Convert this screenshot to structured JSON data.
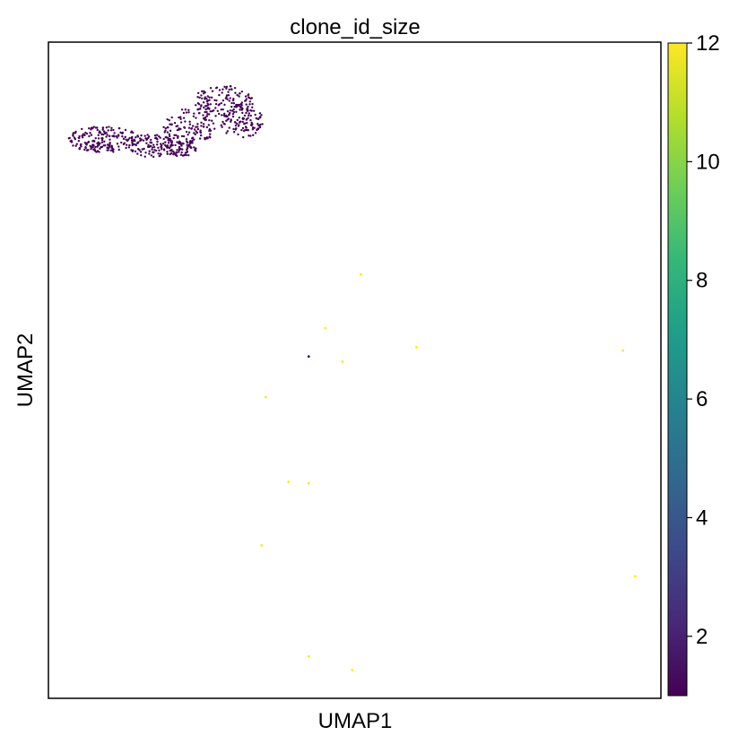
{
  "chart_data": {
    "type": "scatter",
    "title": "clone_id_size",
    "xlabel": "UMAP1",
    "ylabel": "UMAP2",
    "xlim": [
      0,
      100
    ],
    "ylim": [
      0,
      100
    ],
    "grid": false,
    "legend": "none",
    "series": [
      {
        "color_value": 1,
        "color": "#440154",
        "cluster": {
          "count": 720,
          "points": []
        },
        "points": [
          [
            42.5,
            52.1
          ]
        ]
      },
      {
        "color_value": 12,
        "color": "#fde725",
        "points": [
          [
            51.0,
            64.6
          ],
          [
            45.2,
            56.4
          ],
          [
            60.1,
            53.5
          ],
          [
            93.8,
            53.0
          ],
          [
            48.0,
            51.3
          ],
          [
            35.5,
            45.9
          ],
          [
            39.2,
            33.0
          ],
          [
            42.5,
            32.8
          ],
          [
            34.8,
            23.3
          ],
          [
            95.8,
            18.6
          ],
          [
            42.5,
            6.4
          ],
          [
            49.6,
            4.3
          ]
        ]
      }
    ],
    "colorbar": {
      "min": 1,
      "max": 12,
      "ticks": [
        2,
        4,
        6,
        8,
        10,
        12
      ],
      "tick_labels": [
        "2",
        "4",
        "6",
        "8",
        "10",
        "12"
      ],
      "colormap": "viridis",
      "stops": [
        "#440154",
        "#482878",
        "#3e4989",
        "#31688e",
        "#26828e",
        "#1f9e89",
        "#35b779",
        "#6ece58",
        "#b5de2b",
        "#fde725"
      ]
    }
  }
}
